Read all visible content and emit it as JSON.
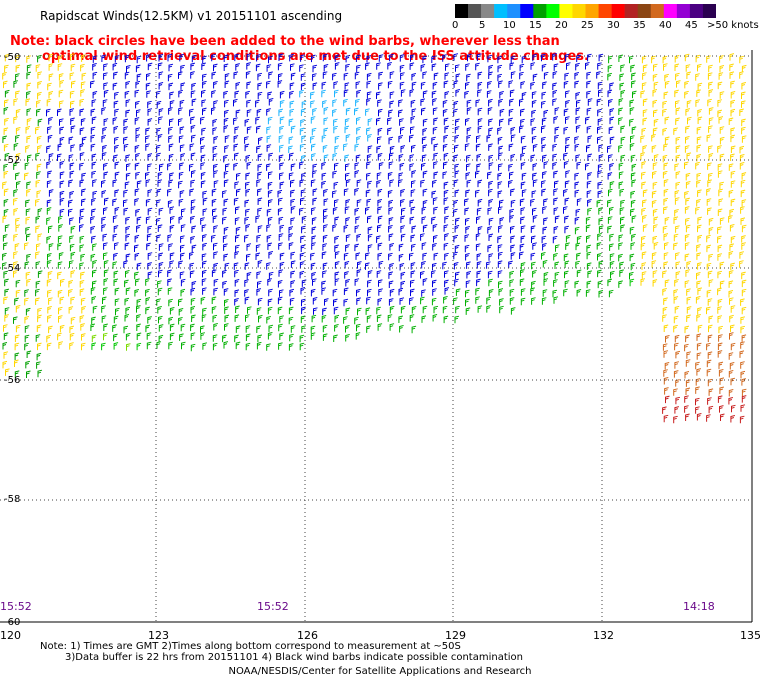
{
  "title": "Rapidscat Winds(12.5KM) v1 20151101 ascending",
  "note": {
    "line1": "Note: black circles have been added to the wind barbs, wherever less than",
    "line2": "optimal wind retrieval conditions are met due to the ISS attitude changes."
  },
  "legend": {
    "labels": [
      "0",
      "5",
      "10",
      "15",
      "20",
      "25",
      "30",
      "35",
      "40",
      "45",
      ">50 knots"
    ],
    "colors": [
      "#000000",
      "#555555",
      "#888888",
      "#00bfff",
      "#1e90ff",
      "#0000ff",
      "#00a000",
      "#00ff00",
      "#ffff00",
      "#ffd700",
      "#ffa500",
      "#ff4500",
      "#ff0000",
      "#b22222",
      "#8b4513",
      "#d2691e",
      "#ff00ff",
      "#9400d3",
      "#4b0082",
      "#2a0050"
    ]
  },
  "map": {
    "lat_labels": [
      "-50",
      "-52",
      "-54",
      "-56",
      "-58",
      "-60"
    ],
    "lon_labels": [
      "120",
      "123",
      "126",
      "129",
      "132",
      "135"
    ],
    "time_labels": [
      "15:52",
      "15:52",
      "14:18"
    ]
  },
  "footnote": {
    "line1": "Note: 1) Times are GMT 2)Times along bottom correspond to measurement at ~50S",
    "line2": "3)Data buffer is 22 hrs from 20151101 4) Black wind barbs indicate possible contamination"
  },
  "credit": "NOAA/NESDIS/Center for Satellite Applications and Research"
}
